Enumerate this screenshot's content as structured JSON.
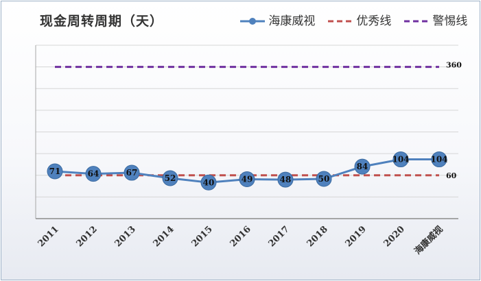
{
  "chart_data": {
    "type": "line",
    "title": "现金周转周期（天）",
    "categories": [
      "2011",
      "2012",
      "2013",
      "2014",
      "2015",
      "2016",
      "2017",
      "2018",
      "2019",
      "2020",
      "海康威视"
    ],
    "series": [
      {
        "name": "海康威视",
        "values": [
          71,
          64,
          67,
          52,
          40,
          49,
          48,
          50,
          84,
          104,
          104
        ],
        "color": "#4f81bd",
        "style": "solid-marker"
      },
      {
        "name": "优秀线",
        "values": [
          60,
          60,
          60,
          60,
          60,
          60,
          60,
          60,
          60,
          60,
          60
        ],
        "color": "#c0504d",
        "style": "dashed"
      },
      {
        "name": "警惕线",
        "values": [
          360,
          360,
          360,
          360,
          360,
          360,
          360,
          360,
          360,
          360,
          360
        ],
        "color": "#7030a0",
        "style": "dashed"
      }
    ],
    "ref_labels": {
      "good": "60",
      "warn": "360"
    },
    "ylim": [
      -60,
      420
    ],
    "grid": true,
    "legend_position": "top-right"
  }
}
